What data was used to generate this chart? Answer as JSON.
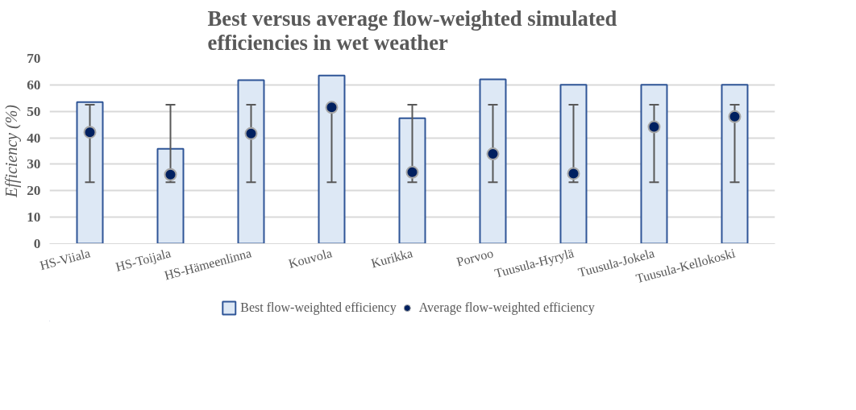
{
  "chart_data": {
    "type": "bar",
    "title": "Best versus average flow-weighted simulated efficiencies in wet weather",
    "ylabel": "Efficiency (%)",
    "categories": [
      "HS-Viiala",
      "HS-Toijala",
      "HS-Hämeenlinna",
      "Kouvola",
      "Kurikka",
      "Porvoo",
      "Tuusula-Hyrylä",
      "Tuusula-Jokela",
      "Tuusula-Kellokoski"
    ],
    "series": [
      {
        "name": "Best flow-weighted efficiency",
        "type": "bar",
        "color": "#dde8f5",
        "values": [
          53.5,
          35.8,
          61.8,
          63.5,
          47.4,
          62.1,
          60.0,
          60.0,
          60.0
        ]
      },
      {
        "name": "Average flow-weighted efficiency",
        "type": "scatter",
        "color": "#002060",
        "values": [
          42.1,
          26.1,
          41.6,
          51.5,
          27.0,
          33.9,
          26.5,
          44.1,
          48.0
        ],
        "errors": [
          [
            23.2,
            52.5
          ],
          [
            23.2,
            52.5
          ],
          [
            23.2,
            52.5
          ],
          [
            23.2,
            52.5
          ],
          [
            23.2,
            52.5
          ],
          [
            23.2,
            52.5
          ],
          [
            23.2,
            52.5
          ],
          [
            23.2,
            52.5
          ],
          [
            23.2,
            52.5
          ]
        ]
      }
    ],
    "ylim": [
      0,
      70
    ],
    "yticks": [
      0,
      10,
      20,
      30,
      40,
      50,
      60,
      70
    ],
    "grid": "y",
    "legend": "bottom",
    "marker": "circle"
  }
}
